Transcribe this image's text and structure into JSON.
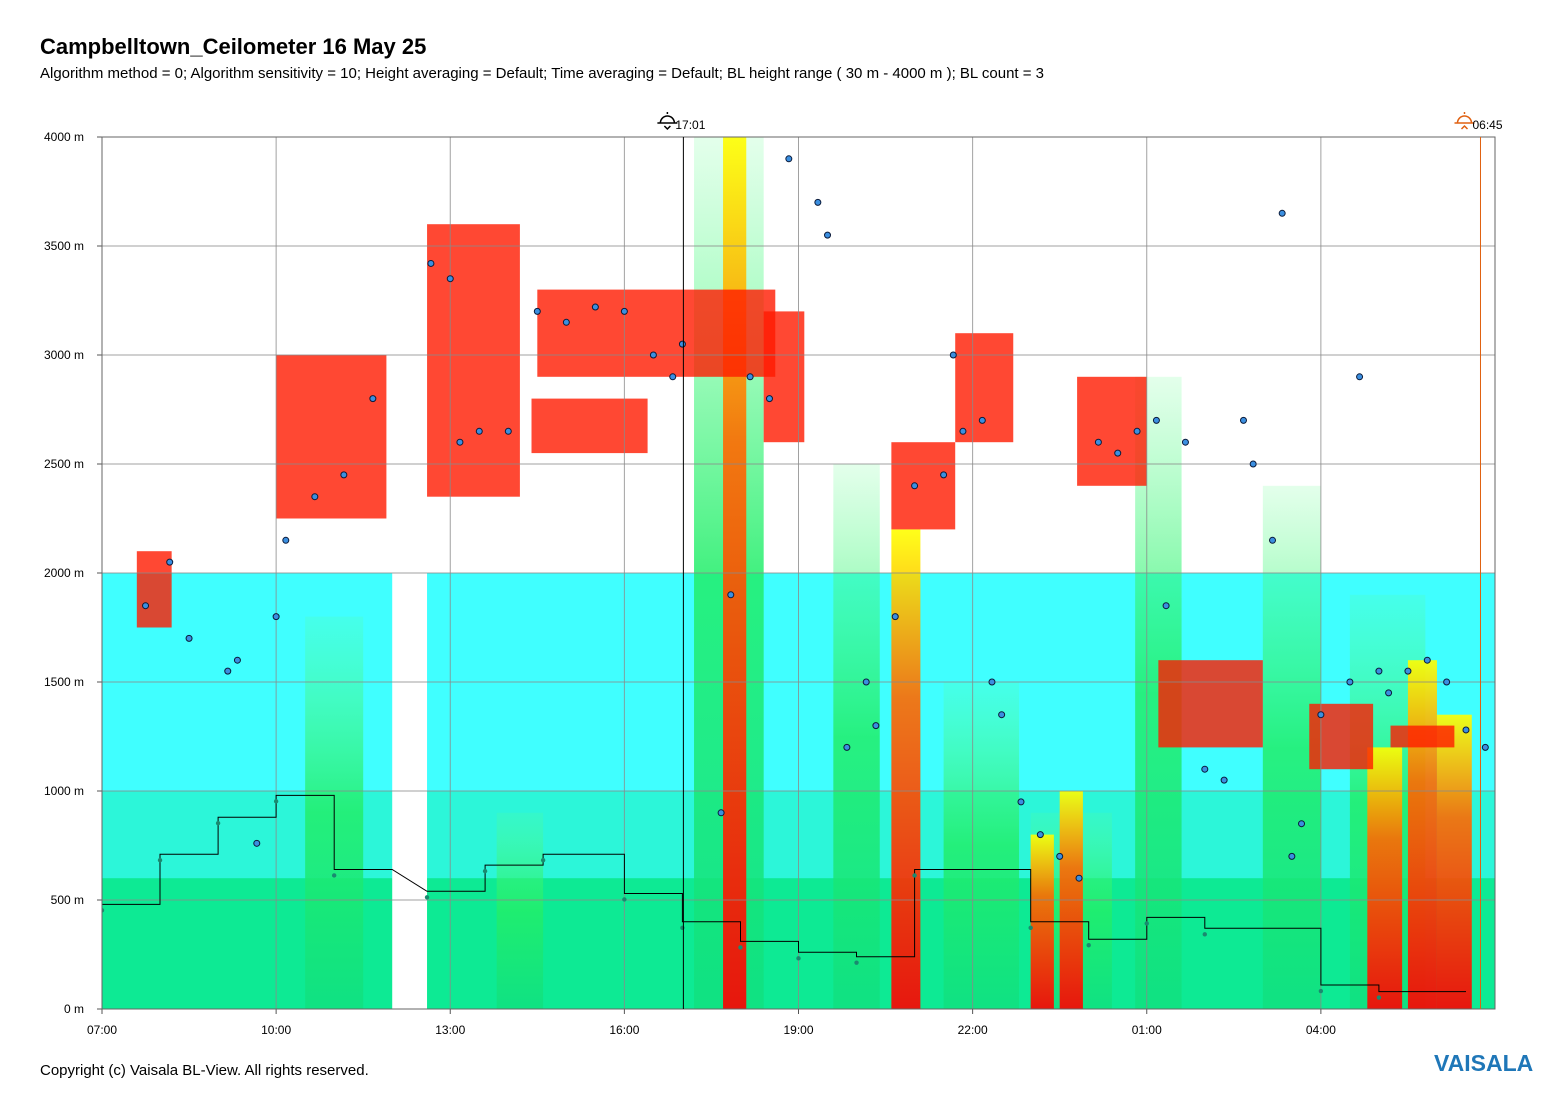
{
  "title": "Campbelltown_Ceilometer 16 May 25",
  "subtitle": "Algorithm method = 0; Algorithm sensitivity = 10; Height averaging = Default; Time averaging = Default; BL height range ( 30 m - 4000 m ); BL count = 3",
  "copyright": "Copyright (c) Vaisala BL-View. All rights reserved.",
  "logo_text": "VAISALA",
  "colors": {
    "low_backscatter": "#00ffff",
    "mid_backscatter": "#00e676",
    "high_backscatter": "#ffff00",
    "very_high_backscatter": "#ff0000",
    "cloud_marker": "#1f5fa8",
    "bl_line": "#000000",
    "sunset_line": "#000000",
    "sunrise_line": "#e06010"
  },
  "markers": {
    "sunset": {
      "label": "17:01",
      "icon": "sunset-icon"
    },
    "sunrise": {
      "label": "06:45",
      "icon": "sunrise-icon"
    }
  },
  "chart_data": {
    "type": "heatmap",
    "title": "Campbelltown_Ceilometer 16 May 25",
    "xlabel": "",
    "ylabel": "",
    "x_range": [
      "07:00",
      "07:00 (+1 day)"
    ],
    "ylim": [
      0,
      4000
    ],
    "xtick_labels": [
      "07:00",
      "10:00",
      "13:00",
      "16:00",
      "19:00",
      "22:00",
      "01:00",
      "04:00"
    ],
    "ytick_labels": [
      "0 m",
      "500 m",
      "1000 m",
      "1500 m",
      "2000 m",
      "2500 m",
      "3000 m",
      "3500 m",
      "4000 m"
    ],
    "grid": true,
    "data_gaps": [
      [
        "12:00",
        "12:36"
      ]
    ],
    "bl_height_step": [
      [
        "07:00",
        480
      ],
      [
        "08:00",
        480
      ],
      [
        "08:00",
        710
      ],
      [
        "09:00",
        710
      ],
      [
        "09:00",
        880
      ],
      [
        "10:00",
        880
      ],
      [
        "10:00",
        980
      ],
      [
        "11:00",
        980
      ],
      [
        "11:00",
        640
      ],
      [
        "12:00",
        640
      ],
      [
        "12:36",
        540
      ],
      [
        "13:36",
        540
      ],
      [
        "13:36",
        660
      ],
      [
        "14:36",
        660
      ],
      [
        "14:36",
        710
      ],
      [
        "16:00",
        710
      ],
      [
        "16:00",
        530
      ],
      [
        "17:00",
        530
      ],
      [
        "17:00",
        400
      ],
      [
        "18:00",
        400
      ],
      [
        "18:00",
        310
      ],
      [
        "19:00",
        310
      ],
      [
        "19:00",
        260
      ],
      [
        "20:00",
        260
      ],
      [
        "20:00",
        240
      ],
      [
        "21:00",
        240
      ],
      [
        "21:00",
        640
      ],
      [
        "23:00",
        640
      ],
      [
        "23:00",
        400
      ],
      [
        "00:00",
        400
      ],
      [
        "00:00",
        320
      ],
      [
        "01:00",
        320
      ],
      [
        "01:00",
        420
      ],
      [
        "02:00",
        420
      ],
      [
        "02:00",
        370
      ],
      [
        "04:00",
        370
      ],
      [
        "04:00",
        110
      ],
      [
        "05:00",
        110
      ],
      [
        "05:00",
        80
      ],
      [
        "06:30",
        80
      ]
    ],
    "cloud_base_heights": [
      [
        "07:45",
        1850
      ],
      [
        "08:10",
        2050
      ],
      [
        "08:30",
        1700
      ],
      [
        "09:10",
        1550
      ],
      [
        "09:20",
        1600
      ],
      [
        "09:40",
        760
      ],
      [
        "10:00",
        1800
      ],
      [
        "10:10",
        2150
      ],
      [
        "10:40",
        2350
      ],
      [
        "11:10",
        2450
      ],
      [
        "11:40",
        2800
      ],
      [
        "12:40",
        3420
      ],
      [
        "13:00",
        3350
      ],
      [
        "13:10",
        2600
      ],
      [
        "13:30",
        2650
      ],
      [
        "14:00",
        2650
      ],
      [
        "14:30",
        3200
      ],
      [
        "15:00",
        3150
      ],
      [
        "15:30",
        3220
      ],
      [
        "16:00",
        3200
      ],
      [
        "16:30",
        3000
      ],
      [
        "16:50",
        2900
      ],
      [
        "17:00",
        3050
      ],
      [
        "17:40",
        900
      ],
      [
        "17:50",
        1900
      ],
      [
        "18:10",
        2900
      ],
      [
        "18:30",
        2800
      ],
      [
        "18:50",
        3900
      ],
      [
        "19:20",
        3700
      ],
      [
        "19:30",
        3550
      ],
      [
        "19:50",
        1200
      ],
      [
        "20:10",
        1500
      ],
      [
        "20:20",
        1300
      ],
      [
        "20:40",
        1800
      ],
      [
        "21:00",
        2400
      ],
      [
        "21:30",
        2450
      ],
      [
        "21:40",
        3000
      ],
      [
        "21:50",
        2650
      ],
      [
        "22:10",
        2700
      ],
      [
        "22:20",
        1500
      ],
      [
        "22:30",
        1350
      ],
      [
        "22:50",
        950
      ],
      [
        "23:10",
        800
      ],
      [
        "23:30",
        700
      ],
      [
        "23:50",
        600
      ],
      [
        "00:10",
        2600
      ],
      [
        "00:30",
        2550
      ],
      [
        "00:50",
        2650
      ],
      [
        "01:10",
        2700
      ],
      [
        "01:20",
        1850
      ],
      [
        "01:40",
        2600
      ],
      [
        "02:00",
        1100
      ],
      [
        "02:20",
        1050
      ],
      [
        "02:40",
        2700
      ],
      [
        "02:50",
        2500
      ],
      [
        "03:10",
        2150
      ],
      [
        "03:20",
        3650
      ],
      [
        "03:30",
        700
      ],
      [
        "03:40",
        850
      ],
      [
        "04:00",
        1350
      ],
      [
        "04:30",
        1500
      ],
      [
        "04:40",
        2900
      ],
      [
        "05:00",
        1550
      ],
      [
        "05:10",
        1450
      ],
      [
        "05:30",
        1550
      ],
      [
        "05:50",
        1600
      ],
      [
        "06:10",
        1500
      ],
      [
        "06:30",
        1280
      ],
      [
        "06:50",
        1200
      ]
    ]
  }
}
